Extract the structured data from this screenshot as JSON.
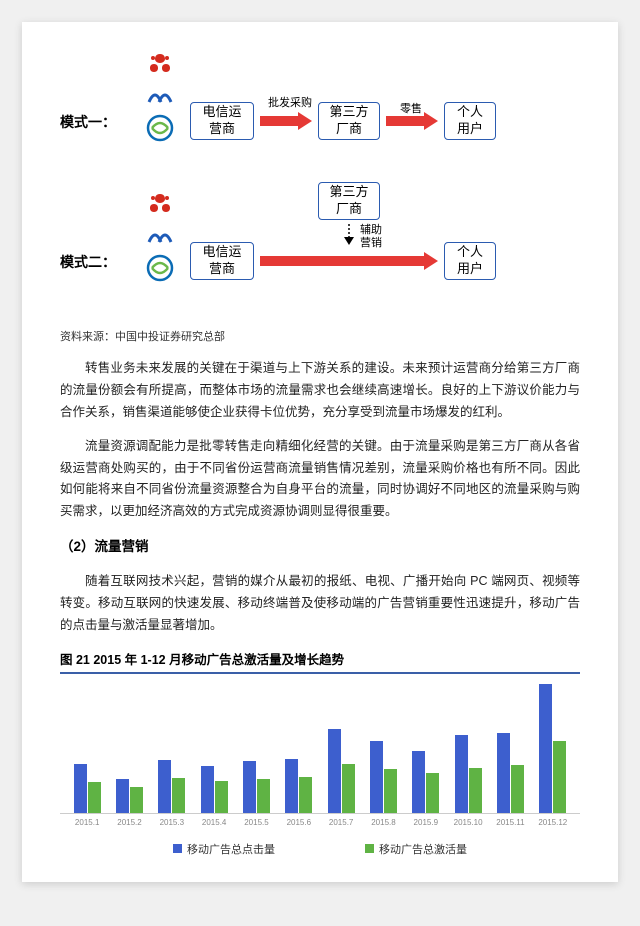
{
  "diagram": {
    "mode1_label": "模式一：",
    "mode2_label": "模式二：",
    "box_operator": "电信运\n营商",
    "box_vendor": "第三方\n厂商",
    "box_user": "个人\n用户",
    "lbl_wholesale": "批发采购",
    "lbl_retail": "零售",
    "lbl_assist": "辅助\n营销",
    "arrow_color": "#e53935",
    "box_border": "#2b5bb0"
  },
  "source": "资料来源：中国中投证券研究总部",
  "para1": "转售业务未来发展的关键在于渠道与上下游关系的建设。未来预计运营商分给第三方厂商的流量份额会有所提高，而整体市场的流量需求也会继续高速增长。良好的上下游议价能力与合作关系，销售渠道能够使企业获得卡位优势，充分享受到流量市场爆发的红利。",
  "para2": "流量资源调配能力是批零转售走向精细化经营的关键。由于流量采购是第三方厂商从各省级运营商处购买的，由于不同省份运营商流量销售情况差别，流量采购价格也有所不同。因此如何能将来自不同省份流量资源整合为自身平台的流量，同时协调好不同地区的流量采购与购买需求，以更加经济高效的方式完成资源协调则显得很重要。",
  "heading": "（2）流量营销",
  "para3": "随着互联网技术兴起，营销的媒介从最初的报纸、电视、广播开始向 PC 端网页、视频等转变。移动互联网的快速发展、移动终端普及使移动端的广告营销重要性迅速提升，移动广告的点击量与激活量显著增加。",
  "chart": {
    "title": "图 21 2015 年 1-12 月移动广告总激活量及增长趋势",
    "categories": [
      "2015.1",
      "2015.2",
      "2015.3",
      "2015.4",
      "2015.5",
      "2015.6",
      "2015.7",
      "2015.8",
      "2015.9",
      "2015.10",
      "2015.11",
      "2015.12"
    ],
    "series_blue": [
      38,
      26,
      41,
      36,
      40,
      42,
      65,
      56,
      48,
      60,
      62,
      100
    ],
    "series_green": [
      24,
      20,
      27,
      25,
      26,
      28,
      38,
      34,
      31,
      35,
      37,
      56
    ],
    "legend_blue": "移动广告总点击量",
    "legend_green": "移动广告总激活量",
    "color_blue": "#3d5fce",
    "color_green": "#5fb344",
    "ymax": 100
  }
}
